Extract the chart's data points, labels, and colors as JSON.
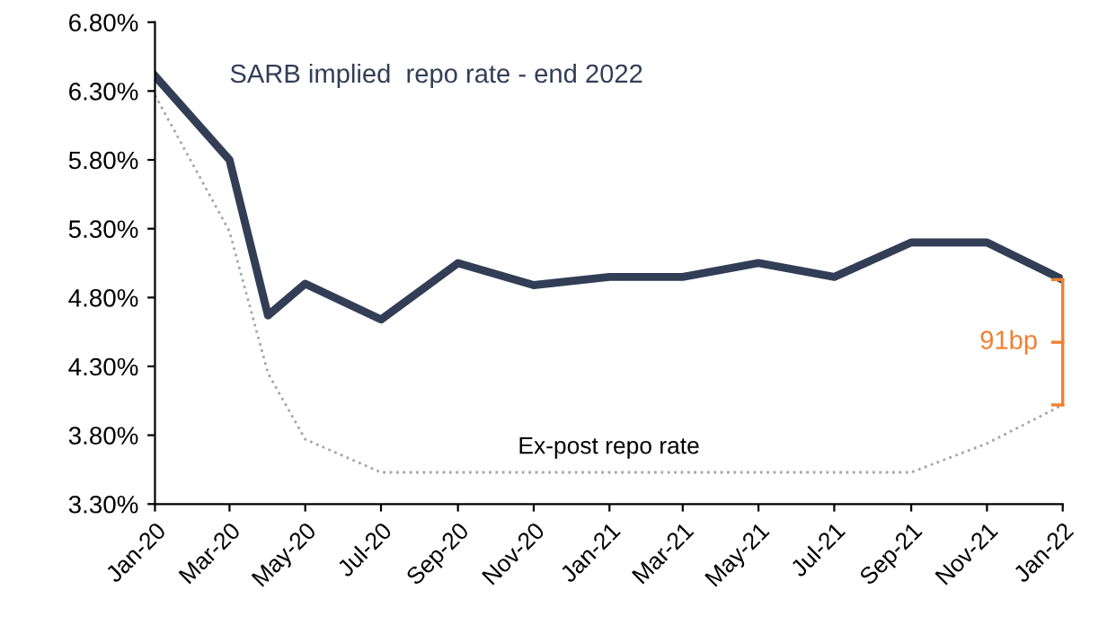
{
  "chart_data": {
    "type": "line",
    "series": [
      {
        "name": "SARB implied  repo rate - end 2022",
        "color": "#323e56",
        "line_style": "solid",
        "x": [
          "2020-01",
          "2020-03",
          "2020-04",
          "2020-05",
          "2020-07",
          "2020-09",
          "2020-11",
          "2021-01",
          "2021-03",
          "2021-05",
          "2021-07",
          "2021-09",
          "2021-11",
          "2022-01"
        ],
        "values": [
          6.41,
          5.8,
          4.67,
          4.9,
          4.64,
          5.05,
          4.89,
          4.95,
          4.95,
          5.05,
          4.95,
          5.2,
          5.2,
          4.93
        ]
      },
      {
        "name": "Ex-post repo rate",
        "color": "#a6a6a6",
        "line_style": "dotted",
        "x": [
          "2020-01",
          "2020-03",
          "2020-04",
          "2020-05",
          "2020-07",
          "2021-09",
          "2021-11",
          "2022-01"
        ],
        "values": [
          6.27,
          5.28,
          4.25,
          3.77,
          3.53,
          3.53,
          3.74,
          4.02
        ]
      }
    ],
    "annotations": [
      "91bp"
    ],
    "ylim": [
      3.3,
      6.8
    ],
    "yticks": [
      {
        "value": 3.3,
        "label": "3.30%"
      },
      {
        "value": 3.8,
        "label": "3.80%"
      },
      {
        "value": 4.3,
        "label": "4.30%"
      },
      {
        "value": 4.8,
        "label": "4.80%"
      },
      {
        "value": 5.3,
        "label": "5.30%"
      },
      {
        "value": 5.8,
        "label": "5.80%"
      },
      {
        "value": 6.3,
        "label": "6.30%"
      },
      {
        "value": 6.8,
        "label": "6.80%"
      }
    ],
    "xlim": [
      "2020-01",
      "2022-01"
    ],
    "xticks": [
      {
        "value": "2020-01",
        "label": "Jan-20"
      },
      {
        "value": "2020-03",
        "label": "Mar-20"
      },
      {
        "value": "2020-05",
        "label": "May-20"
      },
      {
        "value": "2020-07",
        "label": "Jul-20"
      },
      {
        "value": "2020-09",
        "label": "Sep-20"
      },
      {
        "value": "2020-11",
        "label": "Nov-20"
      },
      {
        "value": "2021-01",
        "label": "Jan-21"
      },
      {
        "value": "2021-03",
        "label": "Mar-21"
      },
      {
        "value": "2021-05",
        "label": "May-21"
      },
      {
        "value": "2021-07",
        "label": "Jul-21"
      },
      {
        "value": "2021-09",
        "label": "Sep-21"
      },
      {
        "value": "2021-11",
        "label": "Nov-21"
      },
      {
        "value": "2022-01",
        "label": "Jan-22"
      }
    ],
    "grid": false,
    "legend": false,
    "marker": "none"
  }
}
